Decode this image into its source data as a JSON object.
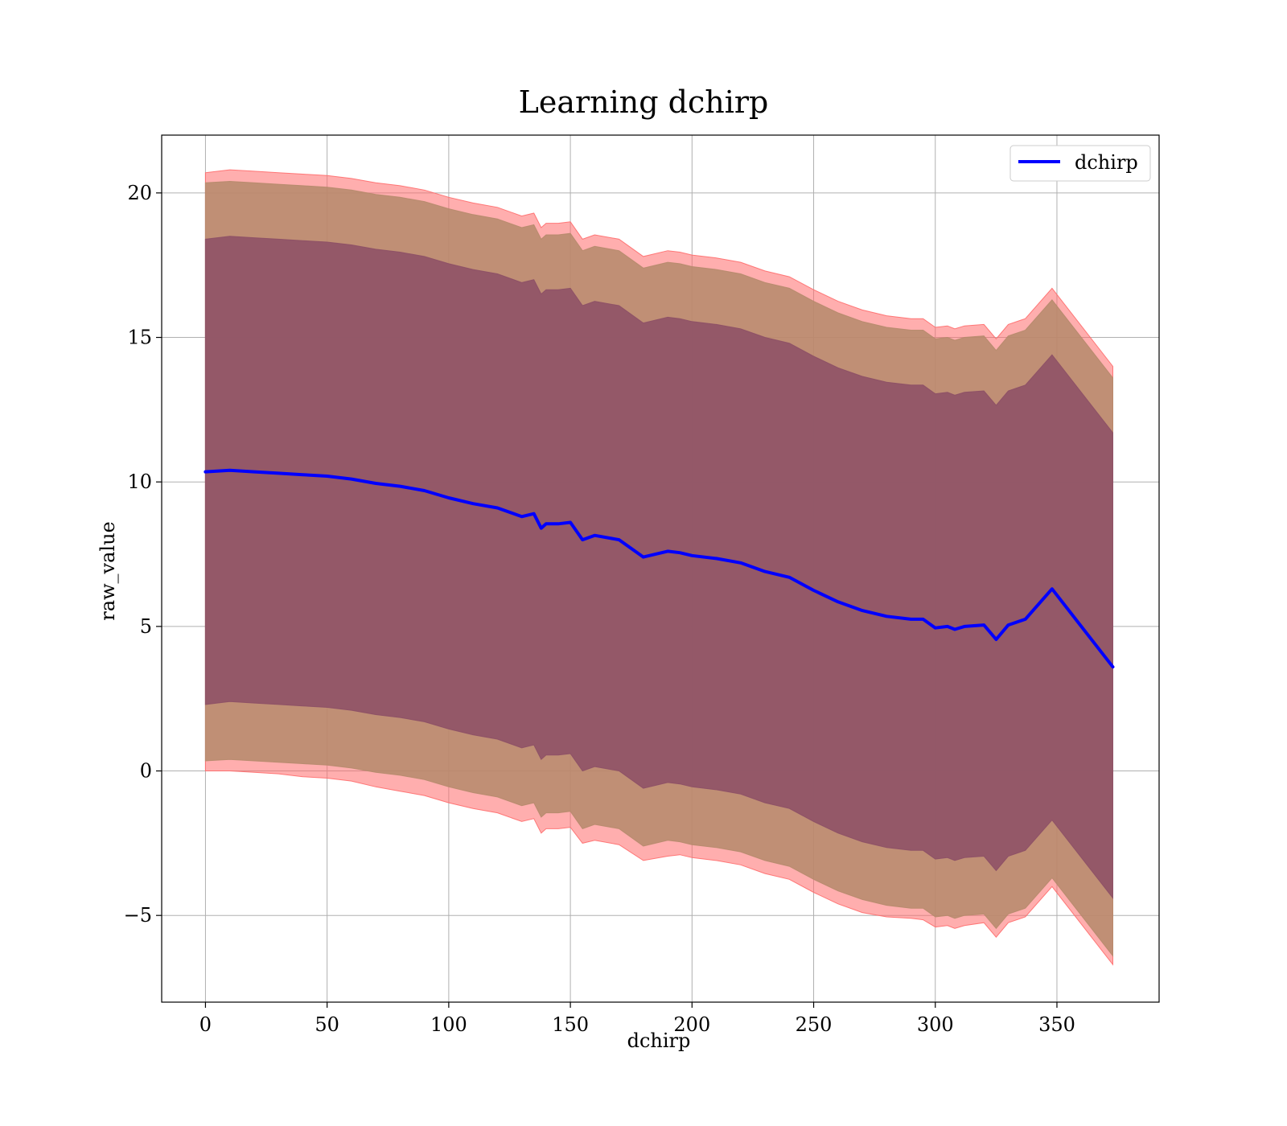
{
  "chart_data": {
    "type": "line",
    "title": "Learning dchirp",
    "xlabel": "dchirp",
    "ylabel": "raw_value",
    "xlim": [
      -18,
      392
    ],
    "ylim": [
      -8,
      22
    ],
    "x_ticks": [
      0,
      50,
      100,
      150,
      200,
      250,
      300,
      350
    ],
    "y_ticks": [
      -5,
      0,
      5,
      10,
      15,
      20
    ],
    "x_tick_labels": [
      "0",
      "50",
      "100",
      "150",
      "200",
      "250",
      "300",
      "350"
    ],
    "y_tick_labels": [
      "−5",
      "0",
      "5",
      "10",
      "15",
      "20"
    ],
    "grid": true,
    "legend": {
      "position": "upper-right",
      "entries": [
        "dchirp"
      ]
    },
    "x": [
      0,
      10,
      20,
      30,
      40,
      50,
      60,
      70,
      80,
      90,
      100,
      110,
      120,
      130,
      135,
      138,
      140,
      145,
      150,
      155,
      160,
      170,
      180,
      190,
      195,
      200,
      210,
      220,
      230,
      240,
      250,
      260,
      270,
      280,
      290,
      295,
      300,
      305,
      308,
      312,
      320,
      325,
      330,
      337,
      348,
      373
    ],
    "series": [
      {
        "name": "dchirp",
        "color": "#0000ff",
        "values": [
          10.35,
          10.4,
          10.35,
          10.3,
          10.25,
          10.2,
          10.1,
          9.95,
          9.85,
          9.7,
          9.45,
          9.25,
          9.1,
          8.8,
          8.9,
          8.4,
          8.55,
          8.55,
          8.6,
          8.0,
          8.15,
          8.0,
          7.4,
          7.6,
          7.55,
          7.45,
          7.35,
          7.2,
          6.9,
          6.7,
          6.25,
          5.85,
          5.55,
          5.35,
          5.25,
          5.25,
          4.95,
          5.0,
          4.9,
          5.0,
          5.05,
          4.55,
          5.05,
          5.25,
          6.3,
          3.6
        ]
      }
    ],
    "bands": [
      {
        "name": "outer band (light red)",
        "color": "#ff6b6b",
        "lower": [
          0.0,
          0.0,
          -0.05,
          -0.1,
          -0.2,
          -0.25,
          -0.35,
          -0.55,
          -0.7,
          -0.85,
          -1.1,
          -1.3,
          -1.45,
          -1.75,
          -1.65,
          -2.15,
          -2.0,
          -2.0,
          -1.95,
          -2.5,
          -2.4,
          -2.55,
          -3.1,
          -2.95,
          -2.9,
          -3.0,
          -3.1,
          -3.25,
          -3.55,
          -3.75,
          -4.2,
          -4.6,
          -4.9,
          -5.05,
          -5.1,
          -5.15,
          -5.4,
          -5.35,
          -5.45,
          -5.35,
          -5.25,
          -5.75,
          -5.25,
          -5.05,
          -4.0,
          -6.7
        ],
        "upper": [
          20.7,
          20.8,
          20.75,
          20.7,
          20.65,
          20.6,
          20.5,
          20.35,
          20.25,
          20.1,
          19.85,
          19.65,
          19.5,
          19.2,
          19.3,
          18.8,
          18.95,
          18.95,
          19.0,
          18.4,
          18.55,
          18.4,
          17.8,
          18.0,
          17.95,
          17.85,
          17.75,
          17.6,
          17.3,
          17.1,
          16.65,
          16.25,
          15.95,
          15.75,
          15.65,
          15.65,
          15.35,
          15.4,
          15.3,
          15.4,
          15.45,
          14.95,
          15.45,
          15.65,
          16.7,
          14.0
        ]
      },
      {
        "name": "middle band (brown)",
        "color": "#b58a6b",
        "lower": [
          0.35,
          0.4,
          0.35,
          0.3,
          0.25,
          0.2,
          0.1,
          -0.05,
          -0.15,
          -0.3,
          -0.55,
          -0.75,
          -0.9,
          -1.2,
          -1.1,
          -1.6,
          -1.45,
          -1.45,
          -1.4,
          -2.0,
          -1.85,
          -2.0,
          -2.6,
          -2.4,
          -2.45,
          -2.55,
          -2.65,
          -2.8,
          -3.1,
          -3.3,
          -3.75,
          -4.15,
          -4.45,
          -4.65,
          -4.75,
          -4.75,
          -5.05,
          -5.0,
          -5.1,
          -5.0,
          -4.95,
          -5.45,
          -4.95,
          -4.75,
          -3.7,
          -6.4
        ],
        "upper": [
          20.35,
          20.4,
          20.35,
          20.3,
          20.25,
          20.2,
          20.1,
          19.95,
          19.85,
          19.7,
          19.45,
          19.25,
          19.1,
          18.8,
          18.9,
          18.4,
          18.55,
          18.55,
          18.6,
          18.0,
          18.15,
          18.0,
          17.4,
          17.6,
          17.55,
          17.45,
          17.35,
          17.2,
          16.9,
          16.7,
          16.25,
          15.85,
          15.55,
          15.35,
          15.25,
          15.25,
          14.95,
          15.0,
          14.9,
          15.0,
          15.05,
          14.55,
          15.05,
          15.25,
          16.3,
          13.6
        ]
      },
      {
        "name": "inner band (purple)",
        "color": "#8c4f66",
        "lower": [
          2.3,
          2.4,
          2.35,
          2.3,
          2.25,
          2.2,
          2.1,
          1.95,
          1.85,
          1.7,
          1.45,
          1.25,
          1.1,
          0.8,
          0.9,
          0.4,
          0.55,
          0.55,
          0.6,
          0.0,
          0.15,
          0.0,
          -0.6,
          -0.4,
          -0.45,
          -0.55,
          -0.65,
          -0.8,
          -1.1,
          -1.3,
          -1.75,
          -2.15,
          -2.45,
          -2.65,
          -2.75,
          -2.75,
          -3.05,
          -3.0,
          -3.1,
          -3.0,
          -2.95,
          -3.45,
          -2.95,
          -2.75,
          -1.7,
          -4.4
        ],
        "upper": [
          18.4,
          18.5,
          18.45,
          18.4,
          18.35,
          18.3,
          18.2,
          18.05,
          17.95,
          17.8,
          17.55,
          17.35,
          17.2,
          16.9,
          17.0,
          16.5,
          16.65,
          16.65,
          16.7,
          16.1,
          16.25,
          16.1,
          15.5,
          15.7,
          15.65,
          15.55,
          15.45,
          15.3,
          15.0,
          14.8,
          14.35,
          13.95,
          13.65,
          13.45,
          13.35,
          13.35,
          13.05,
          13.1,
          13.0,
          13.1,
          13.15,
          12.65,
          13.15,
          13.35,
          14.4,
          11.7
        ]
      }
    ]
  }
}
